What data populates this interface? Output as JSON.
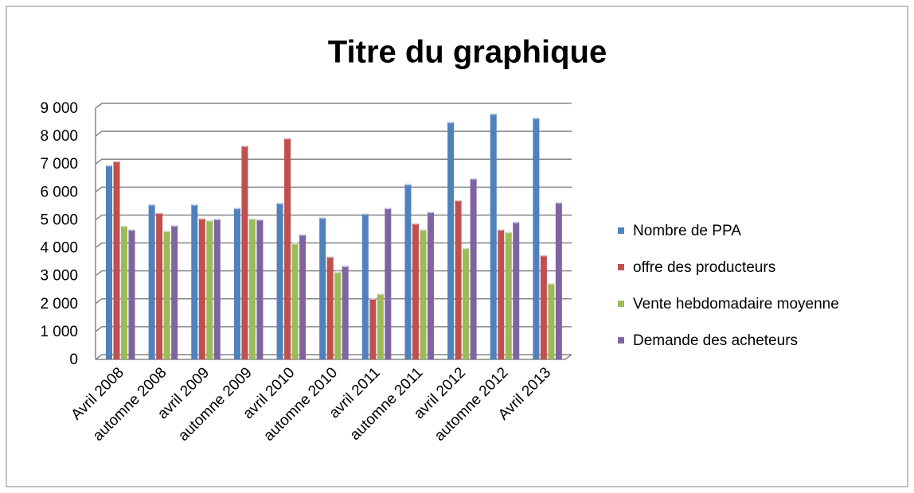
{
  "chart_data": {
    "type": "bar",
    "title": "Titre du graphique",
    "categories": [
      "Avril 2008",
      "automne 2008",
      "avril 2009",
      "automne 2009",
      "avril 2010",
      "automne 2010",
      "avril 2011",
      "automne 2011",
      "avril 2012",
      "automne 2012",
      "Avril 2013"
    ],
    "series": [
      {
        "name": "Nombre de PPA",
        "color": "#4f81bd",
        "values": [
          6950,
          5550,
          5550,
          5420,
          5600,
          5080,
          5220,
          6280,
          8500,
          8800,
          8650
        ]
      },
      {
        "name": "offre des producteurs",
        "color": "#c0504d",
        "values": [
          7100,
          5250,
          5050,
          7650,
          7920,
          3680,
          2180,
          4870,
          5700,
          4650,
          3730
        ]
      },
      {
        "name": "Vente hebdomadaire moyenne",
        "color": "#9bbb59",
        "values": [
          4780,
          4600,
          4980,
          5040,
          4150,
          3130,
          2350,
          4650,
          3990,
          4560,
          2720
        ]
      },
      {
        "name": "Demande des acheteurs",
        "color": "#8064a2",
        "values": [
          4650,
          4800,
          5030,
          5010,
          4470,
          3350,
          5420,
          5280,
          6480,
          4920,
          5620
        ]
      }
    ],
    "ylim": [
      0,
      9000
    ],
    "yticks": [
      0,
      {
        "value": 1000,
        "label": "1 000"
      },
      {
        "value": 2000,
        "label": "2 000"
      },
      {
        "value": 3000,
        "label": "3 000"
      },
      {
        "value": 4000,
        "label": "4 000"
      },
      {
        "value": 5000,
        "label": "5 000"
      },
      {
        "value": 6000,
        "label": "6 000"
      },
      {
        "value": 7000,
        "label": "7 000"
      },
      {
        "value": 8000,
        "label": "8 000"
      },
      {
        "value": 9000,
        "label": "9 000"
      }
    ],
    "grid": true,
    "legend": "right"
  }
}
